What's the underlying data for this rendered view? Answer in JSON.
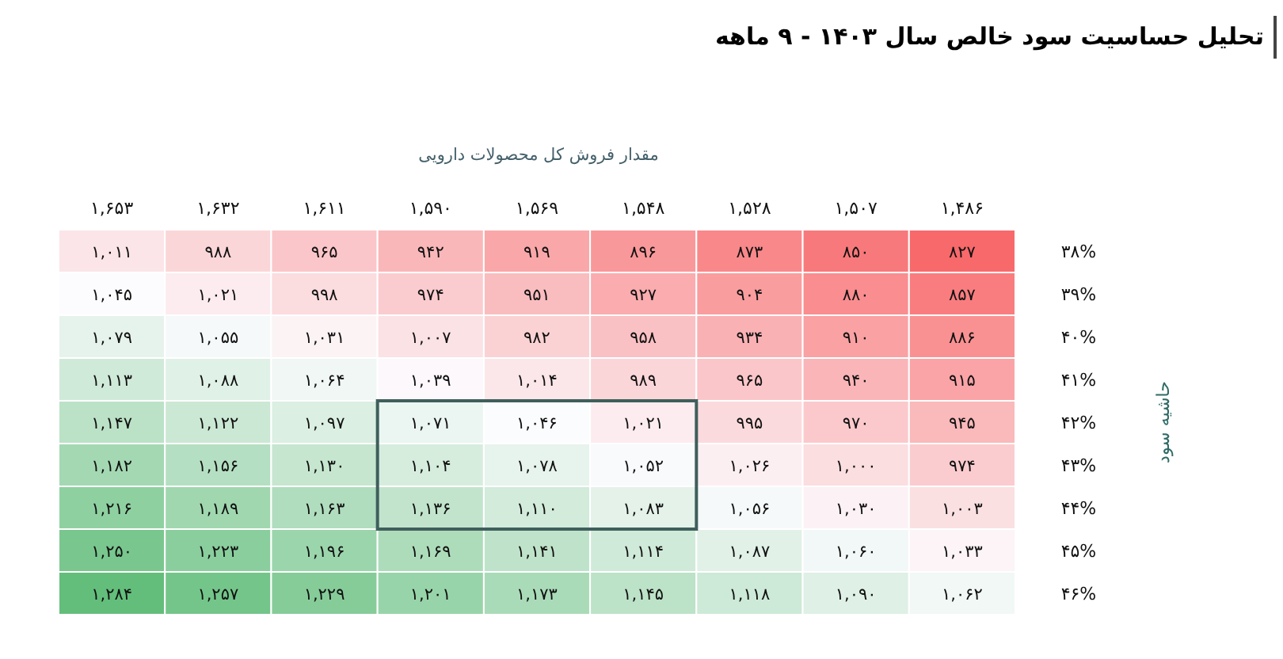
{
  "chart_data": {
    "type": "heatmap",
    "title": "تحلیل حساسیت سود خالص سال ۱۴۰۳ - ۹ ماهه",
    "xlabel": "مقدار فروش کل محصولات دارویی",
    "ylabel": "حاشیه سود",
    "categories": [
      "۱,۶۵۳",
      "۱,۶۳۲",
      "۱,۶۱۱",
      "۱,۵۹۰",
      "۱,۵۶۹",
      "۱,۵۴۸",
      "۱,۵۲۸",
      "۱,۵۰۷",
      "۱,۴۸۶"
    ],
    "y_categories": [
      "۳۸%",
      "۳۹%",
      "۴۰%",
      "۴۱%",
      "۴۲%",
      "۴۳%",
      "۴۴%",
      "۴۵%",
      "۴۶%"
    ],
    "cells": [
      [
        1011,
        988,
        965,
        942,
        919,
        896,
        873,
        850,
        827
      ],
      [
        1045,
        1021,
        998,
        974,
        951,
        927,
        904,
        880,
        857
      ],
      [
        1079,
        1055,
        1031,
        1007,
        982,
        958,
        934,
        910,
        886
      ],
      [
        1113,
        1088,
        1064,
        1039,
        1014,
        989,
        965,
        940,
        915
      ],
      [
        1147,
        1122,
        1097,
        1071,
        1046,
        1021,
        995,
        970,
        945
      ],
      [
        1182,
        1156,
        1130,
        1104,
        1078,
        1052,
        1026,
        1000,
        974
      ],
      [
        1216,
        1189,
        1163,
        1136,
        1110,
        1083,
        1056,
        1030,
        1003
      ],
      [
        1250,
        1223,
        1196,
        1169,
        1141,
        1114,
        1087,
        1060,
        1033
      ],
      [
        1284,
        1257,
        1229,
        1201,
        1173,
        1145,
        1118,
        1090,
        1062
      ]
    ],
    "cell_labels": [
      [
        "۱,۰۱۱",
        "۹۸۸",
        "۹۶۵",
        "۹۴۲",
        "۹۱۹",
        "۸۹۶",
        "۸۷۳",
        "۸۵۰",
        "۸۲۷"
      ],
      [
        "۱,۰۴۵",
        "۱,۰۲۱",
        "۹۹۸",
        "۹۷۴",
        "۹۵۱",
        "۹۲۷",
        "۹۰۴",
        "۸۸۰",
        "۸۵۷"
      ],
      [
        "۱,۰۷۹",
        "۱,۰۵۵",
        "۱,۰۳۱",
        "۱,۰۰۷",
        "۹۸۲",
        "۹۵۸",
        "۹۳۴",
        "۹۱۰",
        "۸۸۶"
      ],
      [
        "۱,۱۱۳",
        "۱,۰۸۸",
        "۱,۰۶۴",
        "۱,۰۳۹",
        "۱,۰۱۴",
        "۹۸۹",
        "۹۶۵",
        "۹۴۰",
        "۹۱۵"
      ],
      [
        "۱,۱۴۷",
        "۱,۱۲۲",
        "۱,۰۹۷",
        "۱,۰۷۱",
        "۱,۰۴۶",
        "۱,۰۲۱",
        "۹۹۵",
        "۹۷۰",
        "۹۴۵"
      ],
      [
        "۱,۱۸۲",
        "۱,۱۵۶",
        "۱,۱۳۰",
        "۱,۱۰۴",
        "۱,۰۷۸",
        "۱,۰۵۲",
        "۱,۰۲۶",
        "۱,۰۰۰",
        "۹۷۴"
      ],
      [
        "۱,۲۱۶",
        "۱,۱۸۹",
        "۱,۱۶۳",
        "۱,۱۳۶",
        "۱,۱۱۰",
        "۱,۰۸۳",
        "۱,۰۵۶",
        "۱,۰۳۰",
        "۱,۰۰۳"
      ],
      [
        "۱,۲۵۰",
        "۱,۲۲۳",
        "۱,۱۹۶",
        "۱,۱۶۹",
        "۱,۱۴۱",
        "۱,۱۱۴",
        "۱,۰۸۷",
        "۱,۰۶۰",
        "۱,۰۳۳"
      ],
      [
        "۱,۲۸۴",
        "۱,۲۵۷",
        "۱,۲۲۹",
        "۱,۲۰۱",
        "۱,۱۷۳",
        "۱,۱۴۵",
        "۱,۱۱۸",
        "۱,۰۹۰",
        "۱,۰۶۲"
      ]
    ]
  }
}
